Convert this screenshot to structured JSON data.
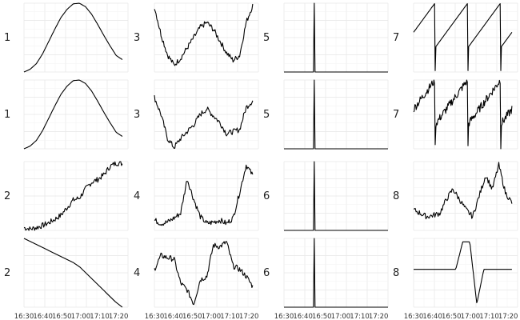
{
  "chart_data": {
    "type": "line",
    "layout": "small-multiples-4x4",
    "x_tick_labels": [
      "16:30",
      "16:40",
      "16:50",
      "17:00",
      "17:10",
      "17:20"
    ],
    "xlim": [
      "16:30",
      "17:25"
    ],
    "grid": true,
    "axes_visible": false,
    "line_color": "#000000",
    "panels": [
      {
        "label": "1",
        "shape": "bell",
        "peak_at": "16:56",
        "y": [
          0,
          0.04,
          0.12,
          0.26,
          0.44,
          0.62,
          0.79,
          0.91,
          0.99,
          1.0,
          0.95,
          0.84,
          0.69,
          0.53,
          0.38,
          0.24,
          0.18
        ]
      },
      {
        "label": "1",
        "shape": "bell",
        "peak_at": "16:56",
        "y": [
          0,
          0.04,
          0.12,
          0.26,
          0.44,
          0.62,
          0.79,
          0.91,
          0.99,
          1.0,
          0.95,
          0.84,
          0.69,
          0.53,
          0.38,
          0.24,
          0.18
        ]
      },
      {
        "label": "2",
        "shape": "rising-steps",
        "y": [
          0.04,
          0.02,
          0.04,
          0.07,
          0.11,
          0.16,
          0.22,
          0.33,
          0.44,
          0.47,
          0.6,
          0.7,
          0.74,
          0.81,
          0.93,
          0.98,
          0.97
        ]
      },
      {
        "label": "2",
        "shape": "declining",
        "y": [
          1.0,
          0.95,
          0.9,
          0.85,
          0.8,
          0.75,
          0.7,
          0.65,
          0.58,
          0.48,
          0.38,
          0.28,
          0.18,
          0.08,
          0.0
        ]
      },
      {
        "label": "3",
        "shape": "u-noisy",
        "y": [
          0.95,
          0.55,
          0.25,
          0.1,
          0.2,
          0.35,
          0.5,
          0.65,
          0.72,
          0.62,
          0.45,
          0.28,
          0.17,
          0.24,
          0.72,
          0.97
        ]
      },
      {
        "label": "3",
        "shape": "u-noisy",
        "y": [
          0.75,
          0.5,
          0.15,
          0.02,
          0.15,
          0.25,
          0.35,
          0.5,
          0.58,
          0.48,
          0.38,
          0.22,
          0.25,
          0.28,
          0.6,
          0.7
        ]
      },
      {
        "label": "4",
        "shape": "two-peaks",
        "y": [
          0.15,
          0.1,
          0.12,
          0.18,
          0.25,
          0.75,
          0.45,
          0.2,
          0.1,
          0.12,
          0.15,
          0.1,
          0.18,
          0.55,
          0.95,
          0.8
        ]
      },
      {
        "label": "4",
        "shape": "plateaus",
        "y": [
          0.55,
          0.75,
          0.72,
          0.7,
          0.35,
          0.25,
          0.05,
          0.4,
          0.45,
          0.9,
          0.88,
          0.95,
          0.6,
          0.55,
          0.45,
          0.3
        ]
      },
      {
        "label": "5",
        "shape": "spike",
        "spike_at": "16:46",
        "y_base": 0,
        "y_peak": 1
      },
      {
        "label": "5",
        "shape": "spike",
        "spike_at": "16:46",
        "y_base": 0,
        "y_peak": 1
      },
      {
        "label": "6",
        "shape": "spike",
        "spike_at": "16:46",
        "y_base": 0,
        "y_peak": 1
      },
      {
        "label": "6",
        "shape": "spike",
        "spike_at": "16:46",
        "y_base": 0,
        "y_peak": 1
      },
      {
        "label": "7",
        "shape": "sawtooth",
        "teeth": 3,
        "y_min": 0,
        "y_max": 1
      },
      {
        "label": "7",
        "shape": "sawtooth-noisy",
        "teeth": 3,
        "y_min": 0,
        "y_max": 1
      },
      {
        "label": "8",
        "shape": "steps-noisy",
        "y": [
          0.3,
          0.25,
          0.2,
          0.22,
          0.25,
          0.45,
          0.6,
          0.45,
          0.3,
          0.2,
          0.5,
          0.8,
          0.6,
          0.95,
          0.55,
          0.4
        ]
      },
      {
        "label": "8",
        "shape": "square-pulse",
        "y": [
          0.55,
          0.55,
          0.55,
          0.55,
          0.55,
          0.55,
          0.55,
          0.95,
          0.95,
          0.05,
          0.55,
          0.55,
          0.55,
          0.55,
          0.55
        ]
      }
    ]
  }
}
